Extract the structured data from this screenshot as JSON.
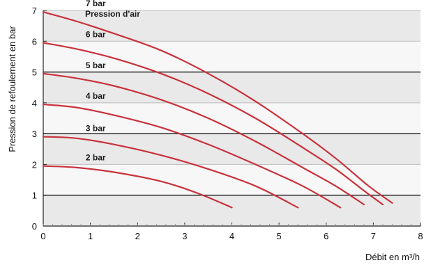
{
  "chart_data": {
    "type": "line",
    "title": "",
    "xlabel": "Débit en  m³/h",
    "ylabel": "Pression de refoulement en bar",
    "xlim": [
      0,
      8
    ],
    "ylim": [
      0,
      7
    ],
    "x_ticks": [
      "0",
      "1",
      "2",
      "3",
      "4",
      "5",
      "6",
      "7",
      "8"
    ],
    "y_ticks": [
      "0",
      "1",
      "2",
      "3",
      "4",
      "5",
      "6",
      "7"
    ],
    "legend_title": "Pression d'air",
    "grid": "horizontal",
    "colors": {
      "curve": "#c8323c",
      "band_light": "#e9e9e9",
      "band_white": "#f7f7f7",
      "gridline_major": "#3a3a3a",
      "gridline_minor": "#bdbdbd",
      "axis": "#222222"
    },
    "series": [
      {
        "name": "7 bar",
        "points": [
          [
            0,
            6.95
          ],
          [
            0.7,
            6.65
          ],
          [
            1.5,
            6.25
          ],
          [
            2.5,
            5.7
          ],
          [
            3.5,
            4.95
          ],
          [
            4.5,
            4.05
          ],
          [
            5.5,
            3.0
          ],
          [
            6.2,
            2.2
          ],
          [
            6.9,
            1.3
          ],
          [
            7.4,
            0.75
          ]
        ]
      },
      {
        "name": "6 bar",
        "points": [
          [
            0,
            5.95
          ],
          [
            0.7,
            5.75
          ],
          [
            1.5,
            5.45
          ],
          [
            2.5,
            4.95
          ],
          [
            3.5,
            4.3
          ],
          [
            4.5,
            3.5
          ],
          [
            5.5,
            2.55
          ],
          [
            6.2,
            1.85
          ],
          [
            6.8,
            1.15
          ],
          [
            7.2,
            0.7
          ]
        ]
      },
      {
        "name": "5 bar",
        "points": [
          [
            0,
            4.95
          ],
          [
            0.7,
            4.8
          ],
          [
            1.5,
            4.55
          ],
          [
            2.5,
            4.1
          ],
          [
            3.5,
            3.5
          ],
          [
            4.5,
            2.75
          ],
          [
            5.5,
            1.9
          ],
          [
            6.2,
            1.3
          ],
          [
            6.8,
            0.7
          ]
        ]
      },
      {
        "name": "4 bar",
        "points": [
          [
            0,
            3.95
          ],
          [
            0.7,
            3.85
          ],
          [
            1.5,
            3.6
          ],
          [
            2.5,
            3.2
          ],
          [
            3.5,
            2.65
          ],
          [
            4.5,
            2.0
          ],
          [
            5.5,
            1.3
          ],
          [
            6.3,
            0.6
          ]
        ]
      },
      {
        "name": "3 bar",
        "points": [
          [
            0,
            2.9
          ],
          [
            0.7,
            2.85
          ],
          [
            1.5,
            2.65
          ],
          [
            2.5,
            2.3
          ],
          [
            3.5,
            1.85
          ],
          [
            4.5,
            1.3
          ],
          [
            5.4,
            0.6
          ]
        ]
      },
      {
        "name": "2 bar",
        "points": [
          [
            0,
            1.95
          ],
          [
            0.7,
            1.9
          ],
          [
            1.5,
            1.75
          ],
          [
            2.5,
            1.45
          ],
          [
            3.3,
            1.05
          ],
          [
            4.0,
            0.6
          ]
        ]
      }
    ]
  }
}
